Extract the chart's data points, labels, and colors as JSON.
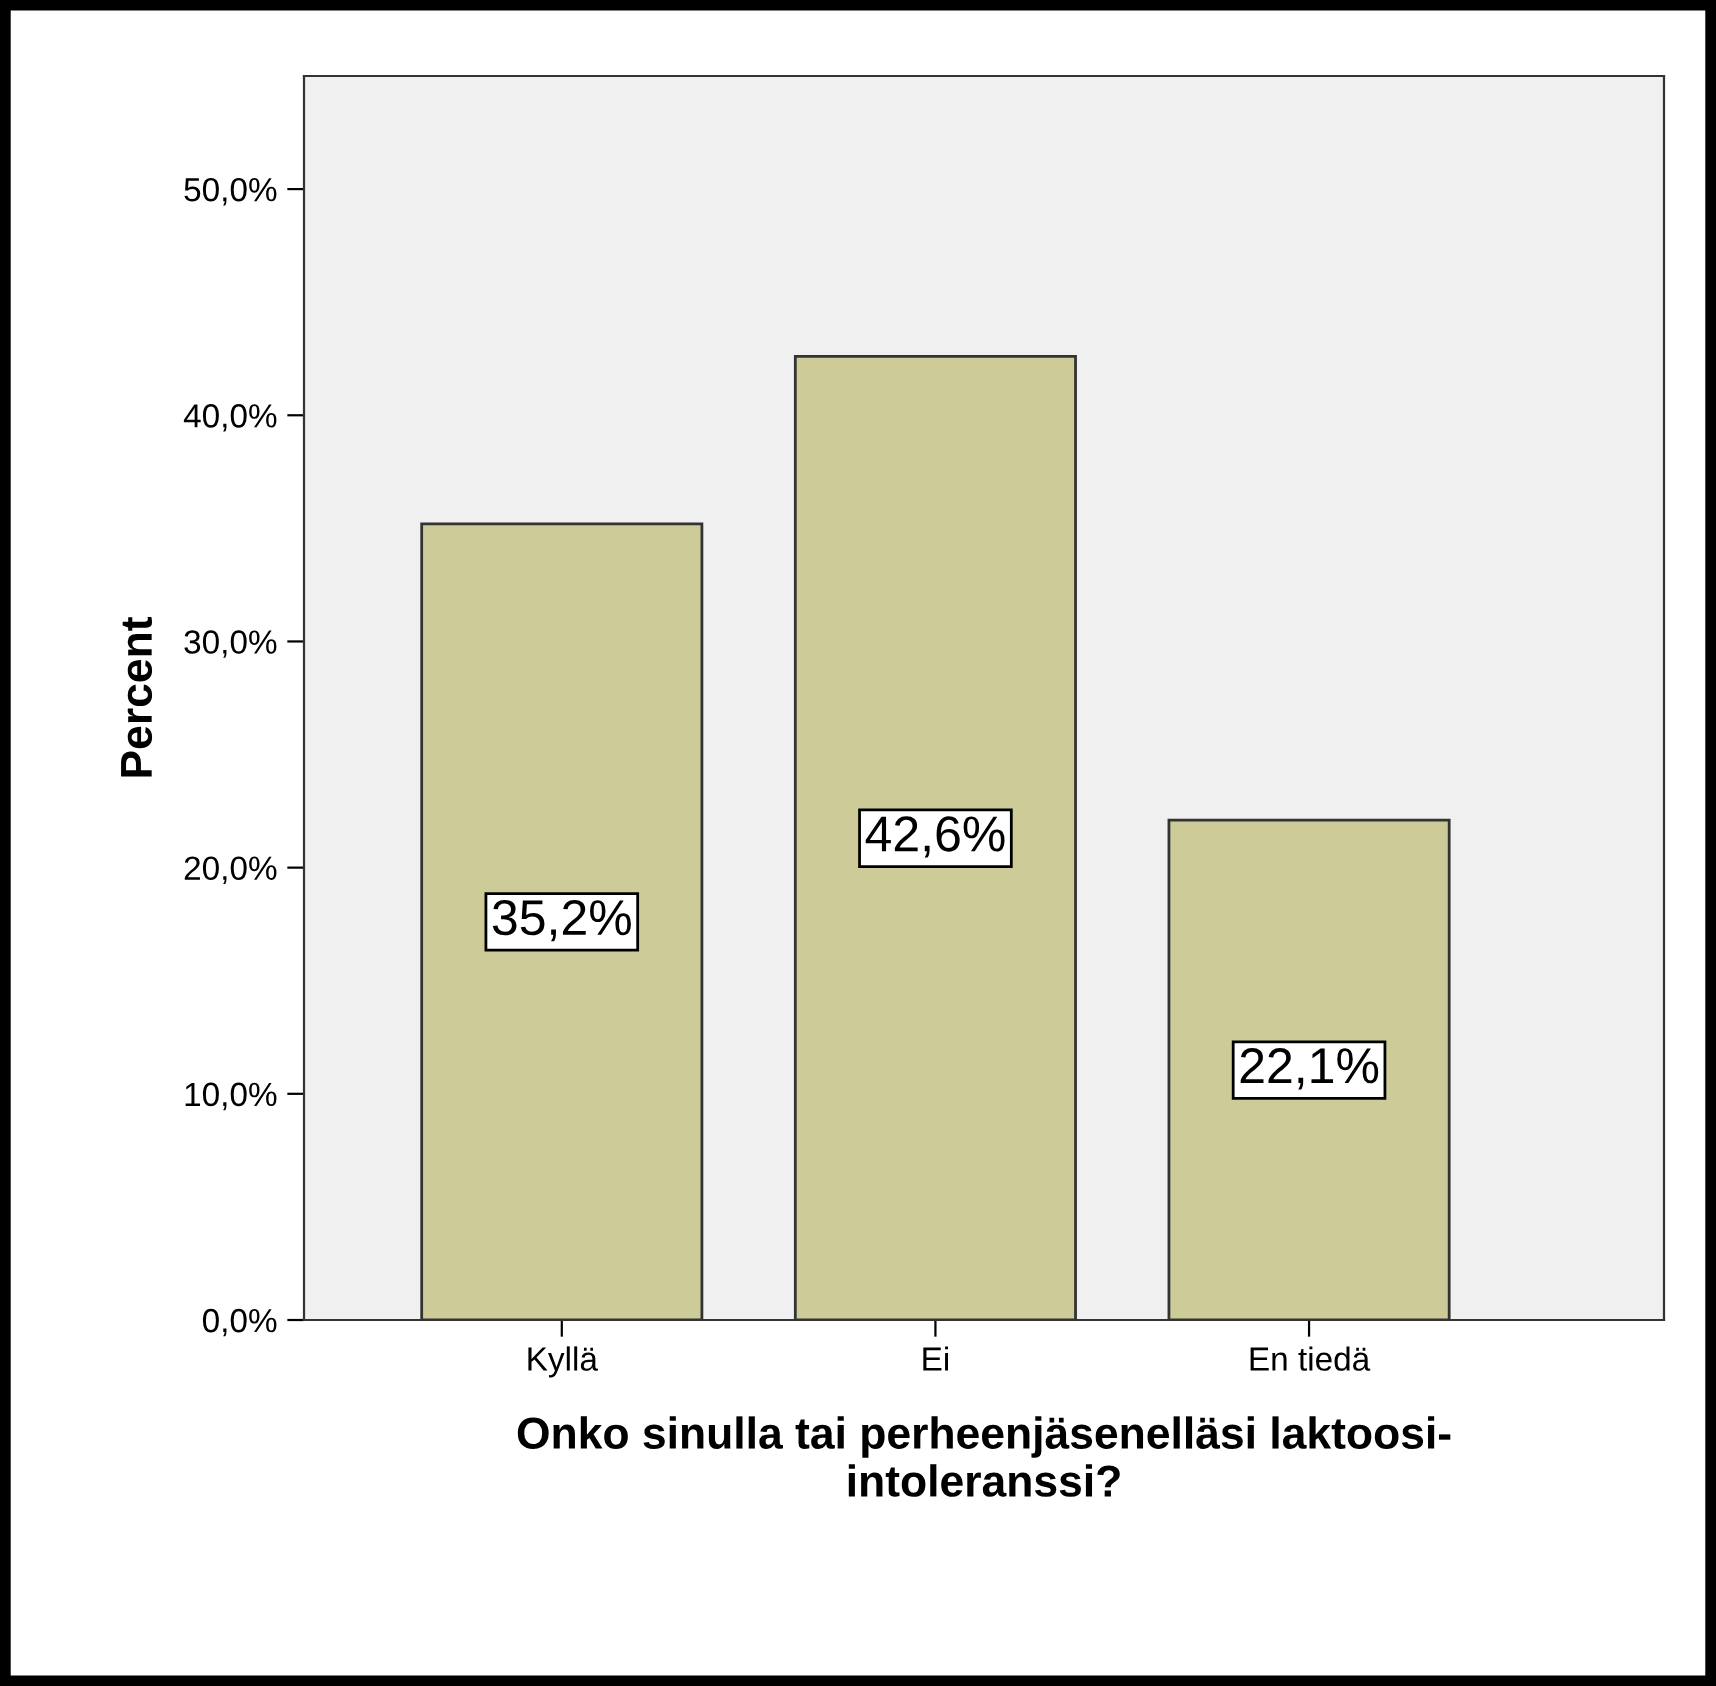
{
  "chart_data": {
    "type": "bar",
    "categories": [
      "Kyllä",
      "Ei",
      "En tiedä"
    ],
    "values": [
      35.2,
      42.6,
      22.1
    ],
    "value_labels": [
      "35,2%",
      "42,6%",
      "22,1%"
    ],
    "color": "#cdcc98",
    "xlabel": "Onko sinulla tai perheenjäsenelläsi laktoosi-\nintoleranssi?",
    "ylabel": "Percent",
    "ylim": [
      0,
      55
    ],
    "yticks": [
      {
        "value": 0,
        "label": "0,0%"
      },
      {
        "value": 10,
        "label": "10,0%"
      },
      {
        "value": 20,
        "label": "20,0%"
      },
      {
        "value": 30,
        "label": "30,0%"
      },
      {
        "value": 40,
        "label": "40,0%"
      },
      {
        "value": 50,
        "label": "50,0%"
      }
    ],
    "grid": false
  }
}
